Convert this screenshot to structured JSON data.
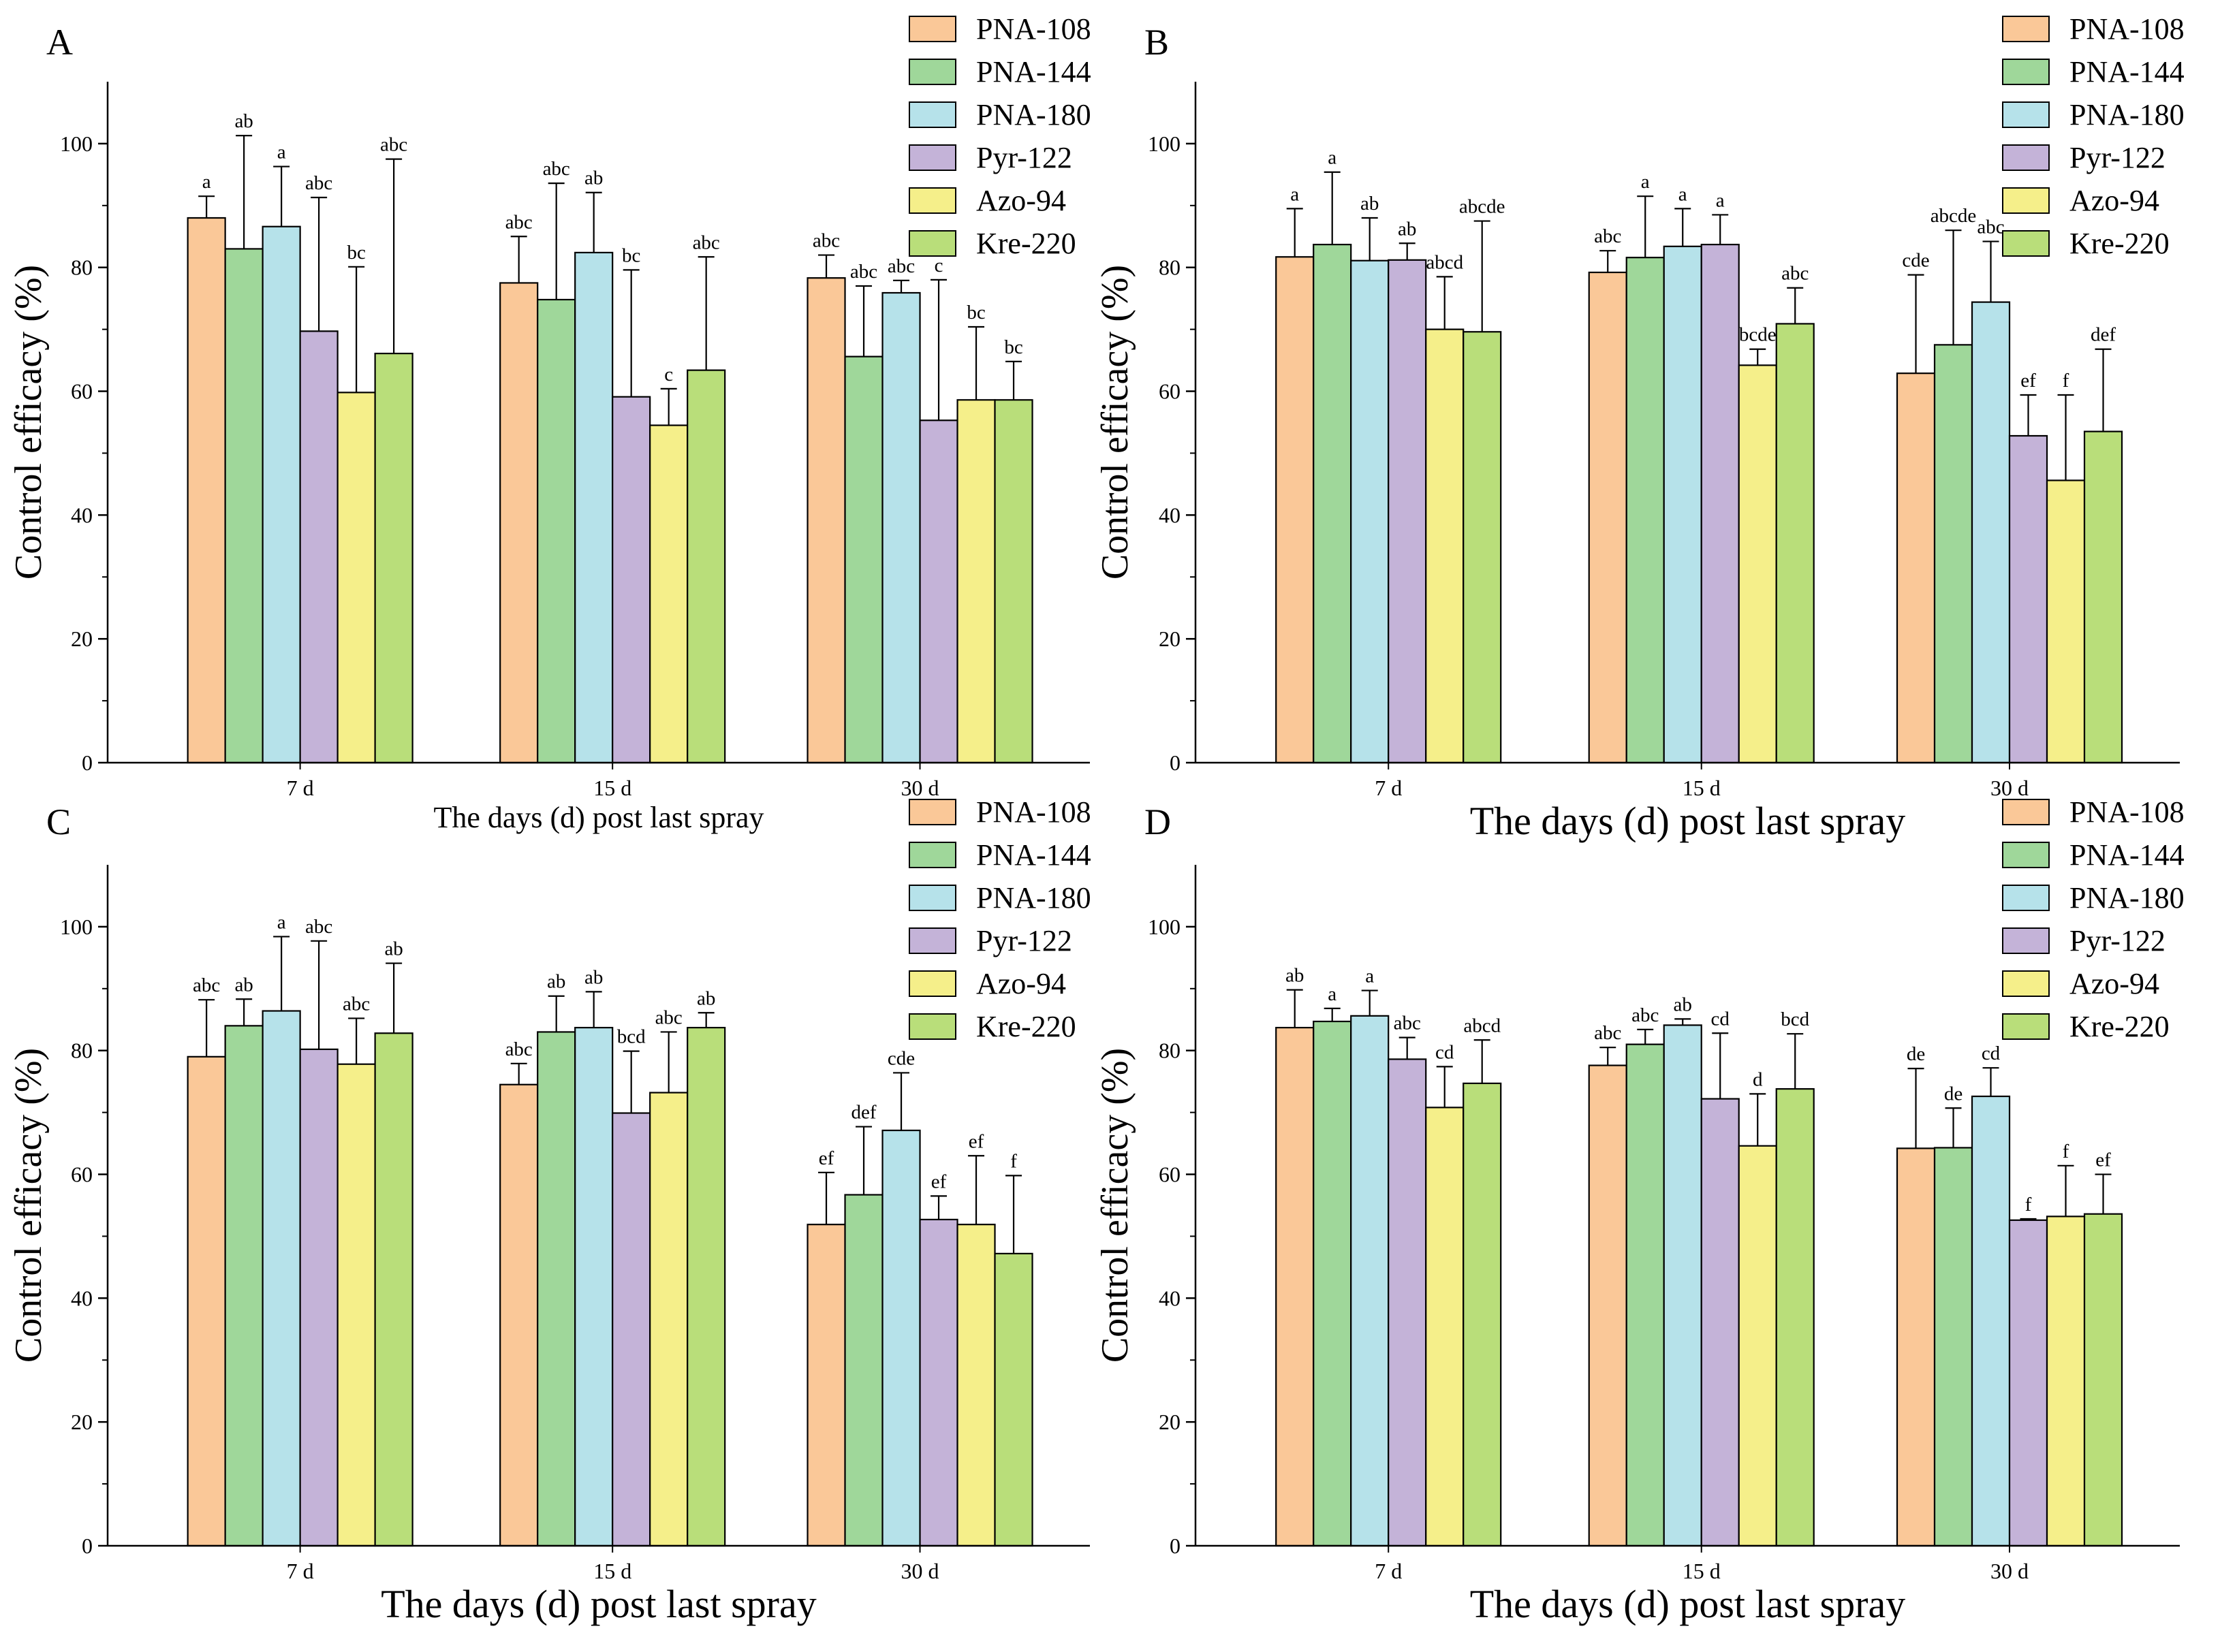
{
  "figure": {
    "series_names": [
      "PNA-108",
      "PNA-144",
      "PNA-180",
      "Pyr-122",
      "Azo-94",
      "Kre-220"
    ],
    "series_colors": [
      "#FAC898",
      "#9FD79A",
      "#B6E2EA",
      "#C4B3D8",
      "#F5EF8A",
      "#B9DE7A"
    ]
  },
  "chart_data": [
    {
      "panel": "A",
      "type": "bar",
      "title": "",
      "xlabel": "The days (d) post last spray",
      "ylabel": "Control efficacy (%)",
      "ylim": [
        0,
        110
      ],
      "yticks": [
        0,
        20,
        40,
        60,
        80,
        100
      ],
      "categories": [
        "7 d",
        "15 d",
        "30 d"
      ],
      "series": [
        {
          "name": "PNA-108",
          "values": [
            88,
            77.5,
            78.3
          ],
          "errors": [
            3.5,
            7.5,
            3.7
          ],
          "labels": [
            "a",
            "abc",
            "abc"
          ]
        },
        {
          "name": "PNA-144",
          "values": [
            83,
            74.8,
            65.6
          ],
          "errors": [
            18.3,
            18.8,
            11.4
          ],
          "labels": [
            "ab",
            "abc",
            "abc"
          ]
        },
        {
          "name": "PNA-180",
          "values": [
            86.6,
            82.4,
            75.9
          ],
          "errors": [
            9.7,
            9.7,
            2
          ],
          "labels": [
            "a",
            "ab",
            "abc"
          ]
        },
        {
          "name": "Pyr-122",
          "values": [
            69.7,
            59.1,
            55.3
          ],
          "errors": [
            21.6,
            20.5,
            22.7
          ],
          "labels": [
            "abc",
            "bc",
            "c"
          ]
        },
        {
          "name": "Azo-94",
          "values": [
            59.8,
            54.5,
            58.6
          ],
          "errors": [
            20.3,
            5.9,
            11.8
          ],
          "labels": [
            "bc",
            "c",
            "bc"
          ]
        },
        {
          "name": "Kre-220",
          "values": [
            66.1,
            63.4,
            58.6
          ],
          "errors": [
            31.4,
            18.3,
            6.2
          ],
          "labels": [
            "abc",
            "abc",
            "bc"
          ]
        }
      ]
    },
    {
      "panel": "B",
      "type": "bar",
      "title": "",
      "xlabel": "The days (d) post last spray",
      "ylabel": "Control efficacy (%)",
      "ylim": [
        0,
        110
      ],
      "yticks": [
        0,
        20,
        40,
        60,
        80,
        100
      ],
      "categories": [
        "7 d",
        "15 d",
        "30 d"
      ],
      "series": [
        {
          "name": "PNA-108",
          "values": [
            81.7,
            79.2,
            62.9
          ],
          "errors": [
            7.8,
            3.5,
            15.9
          ],
          "labels": [
            "a",
            "abc",
            "cde"
          ]
        },
        {
          "name": "PNA-144",
          "values": [
            83.7,
            81.6,
            67.5
          ],
          "errors": [
            11.7,
            9.9,
            18.5
          ],
          "labels": [
            "a",
            "a",
            "abcde"
          ]
        },
        {
          "name": "PNA-180",
          "values": [
            81.1,
            83.4,
            74.4
          ],
          "errors": [
            6.9,
            6.1,
            9.8
          ],
          "labels": [
            "ab",
            "a",
            "abc"
          ]
        },
        {
          "name": "Pyr-122",
          "values": [
            81.2,
            83.7,
            52.8
          ],
          "errors": [
            2.7,
            4.8,
            6.6
          ],
          "labels": [
            "ab",
            "a",
            "ef"
          ]
        },
        {
          "name": "Azo-94",
          "values": [
            70,
            64.2,
            45.6
          ],
          "errors": [
            8.5,
            2.6,
            13.8
          ],
          "labels": [
            "abcd",
            "bcde",
            "f"
          ]
        },
        {
          "name": "Kre-220",
          "values": [
            69.6,
            70.9,
            53.5
          ],
          "errors": [
            17.9,
            5.8,
            13.3
          ],
          "labels": [
            "abcde",
            "abc",
            "def"
          ]
        }
      ]
    },
    {
      "panel": "C",
      "type": "bar",
      "title": "",
      "xlabel": "The days (d) post last spray",
      "ylabel": "Control efficacy (%)",
      "ylim": [
        0,
        110
      ],
      "yticks": [
        0,
        20,
        40,
        60,
        80,
        100
      ],
      "categories": [
        "7 d",
        "15 d",
        "30 d"
      ],
      "series": [
        {
          "name": "PNA-108",
          "values": [
            79,
            74.5,
            51.9
          ],
          "errors": [
            9.2,
            3.4,
            8.4
          ],
          "labels": [
            "abc",
            "abc",
            "ef"
          ]
        },
        {
          "name": "PNA-144",
          "values": [
            84,
            83,
            56.7
          ],
          "errors": [
            4.3,
            5.8,
            11
          ],
          "labels": [
            "ab",
            "ab",
            "def"
          ]
        },
        {
          "name": "PNA-180",
          "values": [
            86.4,
            83.7,
            67.1
          ],
          "errors": [
            12,
            5.8,
            9.3
          ],
          "labels": [
            "a",
            "ab",
            "cde"
          ]
        },
        {
          "name": "Pyr-122",
          "values": [
            80.2,
            69.9,
            52.7
          ],
          "errors": [
            17.5,
            10,
            3.8
          ],
          "labels": [
            "abc",
            "bcd",
            "ef"
          ]
        },
        {
          "name": "Azo-94",
          "values": [
            77.8,
            73.2,
            51.9
          ],
          "errors": [
            7.4,
            9.8,
            11.1
          ],
          "labels": [
            "abc",
            "abc",
            "ef"
          ]
        },
        {
          "name": "Kre-220",
          "values": [
            82.8,
            83.7,
            47.2
          ],
          "errors": [
            11.3,
            2.4,
            12.6
          ],
          "labels": [
            "ab",
            "ab",
            "f"
          ]
        }
      ]
    },
    {
      "panel": "D",
      "type": "bar",
      "title": "",
      "xlabel": "The days (d) post last spray",
      "ylabel": "Control efficacy (%)",
      "ylim": [
        0,
        110
      ],
      "yticks": [
        0,
        20,
        40,
        60,
        80,
        100
      ],
      "categories": [
        "7 d",
        "15 d",
        "30 d"
      ],
      "series": [
        {
          "name": "PNA-108",
          "values": [
            83.7,
            77.6,
            64.2
          ],
          "errors": [
            6.1,
            2.9,
            12.9
          ],
          "labels": [
            "ab",
            "abc",
            "de"
          ]
        },
        {
          "name": "PNA-144",
          "values": [
            84.7,
            81,
            64.3
          ],
          "errors": [
            2.1,
            2.4,
            6.4
          ],
          "labels": [
            "a",
            "abc",
            "de"
          ]
        },
        {
          "name": "PNA-180",
          "values": [
            85.6,
            84.1,
            72.6
          ],
          "errors": [
            4.1,
            1,
            4.6
          ],
          "labels": [
            "a",
            "ab",
            "cd"
          ]
        },
        {
          "name": "Pyr-122",
          "values": [
            78.6,
            72.2,
            52.6
          ],
          "errors": [
            3.5,
            10.6,
            0.2
          ],
          "labels": [
            "abc",
            "cd",
            "f"
          ]
        },
        {
          "name": "Azo-94",
          "values": [
            70.8,
            64.6,
            53.2
          ],
          "errors": [
            6.6,
            8.4,
            8.2
          ],
          "labels": [
            "cd",
            "d",
            "f"
          ]
        },
        {
          "name": "Kre-220",
          "values": [
            74.7,
            73.8,
            53.6
          ],
          "errors": [
            7,
            8.9,
            6.4
          ],
          "labels": [
            "abcd",
            "bcd",
            "ef"
          ]
        }
      ]
    }
  ]
}
